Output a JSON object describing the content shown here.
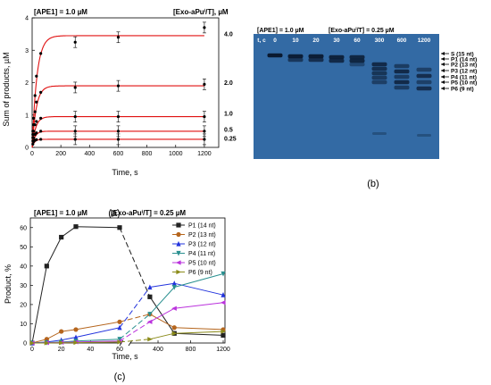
{
  "chart_data": [
    {
      "panel": "(a)",
      "type": "scatter",
      "header_left": "[APE1] = 1.0 µM",
      "header_right": "[Exo-aPuⁱ/T], µM",
      "xlabel": "Time, s",
      "ylabel": "Sum of products, µM",
      "xlim": [
        0,
        1300
      ],
      "ylim": [
        0,
        4
      ],
      "xticks": [
        0,
        200,
        400,
        600,
        800,
        1000,
        1200
      ],
      "yticks": [
        0,
        1,
        2,
        3,
        4
      ],
      "series": [
        {
          "label": "4.0",
          "plateau": 3.45,
          "rate": 0.03,
          "x": [
            5,
            10,
            20,
            30,
            60,
            300,
            600,
            1200
          ],
          "y": [
            0.5,
            0.9,
            1.6,
            2.2,
            2.9,
            3.25,
            3.4,
            3.7
          ]
        },
        {
          "label": "2.0",
          "plateau": 1.9,
          "rate": 0.035,
          "x": [
            5,
            10,
            20,
            30,
            60,
            300,
            600,
            1200
          ],
          "y": [
            0.4,
            0.7,
            1.1,
            1.4,
            1.7,
            1.85,
            1.9,
            1.95
          ]
        },
        {
          "label": "1.0",
          "plateau": 0.95,
          "rate": 0.04,
          "x": [
            5,
            10,
            20,
            30,
            60,
            300,
            600,
            1200
          ],
          "y": [
            0.3,
            0.5,
            0.7,
            0.8,
            0.9,
            0.95,
            0.95,
            0.95
          ]
        },
        {
          "label": "0.5",
          "plateau": 0.5,
          "rate": 0.05,
          "x": [
            5,
            10,
            20,
            30,
            60,
            300,
            600,
            1200
          ],
          "y": [
            0.2,
            0.3,
            0.4,
            0.45,
            0.5,
            0.5,
            0.5,
            0.5
          ]
        },
        {
          "label": "0.25",
          "plateau": 0.25,
          "rate": 0.06,
          "x": [
            5,
            10,
            20,
            30,
            60,
            300,
            600,
            1200
          ],
          "y": [
            0.1,
            0.18,
            0.22,
            0.24,
            0.25,
            0.25,
            0.25,
            0.25
          ]
        }
      ]
    },
    {
      "panel": "(b)",
      "type": "gel",
      "header_top": "[APE1] = 1.0 µM",
      "header_bottom_left": "[APE1] = 1.0 µM",
      "header_bottom_right": "[Exo-aPuⁱ/T] = 0.25 µM",
      "lanes": [
        "t, c",
        "0",
        "10",
        "20",
        "30",
        "60",
        "300",
        "600",
        "1200"
      ],
      "band_labels": [
        "S (15 nt)",
        "P1 (14 nt)",
        "P2 (13 nt)",
        "P3 (12 nt)",
        "P4 (11 nt)",
        "P5 (10 nt)",
        "P6 (9 nt)"
      ]
    },
    {
      "panel": "(c)",
      "type": "line",
      "header_left": "[APE1] = 1.0 µM",
      "header_right": "[Exo-aPuⁱ/T] = 0.25 µM",
      "xlabel": "Time, s",
      "ylabel": "Product, %",
      "ylim": [
        0,
        65
      ],
      "yticks": [
        0,
        10,
        20,
        30,
        40,
        50,
        60
      ],
      "xticks": [
        0,
        20,
        40,
        60,
        400,
        800,
        1200
      ],
      "x_break": true,
      "series": [
        {
          "name": "P1 (14 nt)",
          "color": "#222222",
          "marker": "square",
          "x": [
            0,
            10,
            20,
            30,
            60,
            300,
            600,
            1200
          ],
          "y": [
            0,
            40,
            55,
            60.5,
            60,
            24,
            5,
            4
          ]
        },
        {
          "name": "P2 (13 nt)",
          "color": "#b5651d",
          "marker": "circle",
          "x": [
            0,
            10,
            20,
            30,
            60,
            300,
            600,
            1200
          ],
          "y": [
            0,
            2,
            6,
            7,
            11,
            15,
            8,
            7
          ]
        },
        {
          "name": "P3 (12 nt)",
          "color": "#2233dd",
          "marker": "triangle",
          "x": [
            0,
            10,
            20,
            30,
            60,
            300,
            600,
            1200
          ],
          "y": [
            0,
            0.5,
            1.5,
            3,
            8,
            29,
            31,
            25
          ]
        },
        {
          "name": "P4 (11 nt)",
          "color": "#2a9090",
          "marker": "tri-down",
          "x": [
            0,
            10,
            20,
            30,
            60,
            300,
            600,
            1200
          ],
          "y": [
            0,
            0.2,
            0.5,
            1,
            2,
            15,
            29,
            36
          ]
        },
        {
          "name": "P5 (10 nt)",
          "color": "#bb33dd",
          "marker": "tri-left",
          "x": [
            0,
            10,
            20,
            30,
            60,
            300,
            600,
            1200
          ],
          "y": [
            0,
            0.1,
            0.3,
            0.5,
            1,
            11,
            18,
            21
          ]
        },
        {
          "name": "P6 (9 nt)",
          "color": "#8b8b1a",
          "marker": "tri-right",
          "x": [
            0,
            10,
            20,
            30,
            60,
            300,
            600,
            1200
          ],
          "y": [
            0,
            0,
            0.1,
            0.2,
            0.5,
            2,
            5,
            6
          ]
        }
      ]
    }
  ],
  "captions": [
    "(a)",
    "(b)",
    "(c)"
  ]
}
